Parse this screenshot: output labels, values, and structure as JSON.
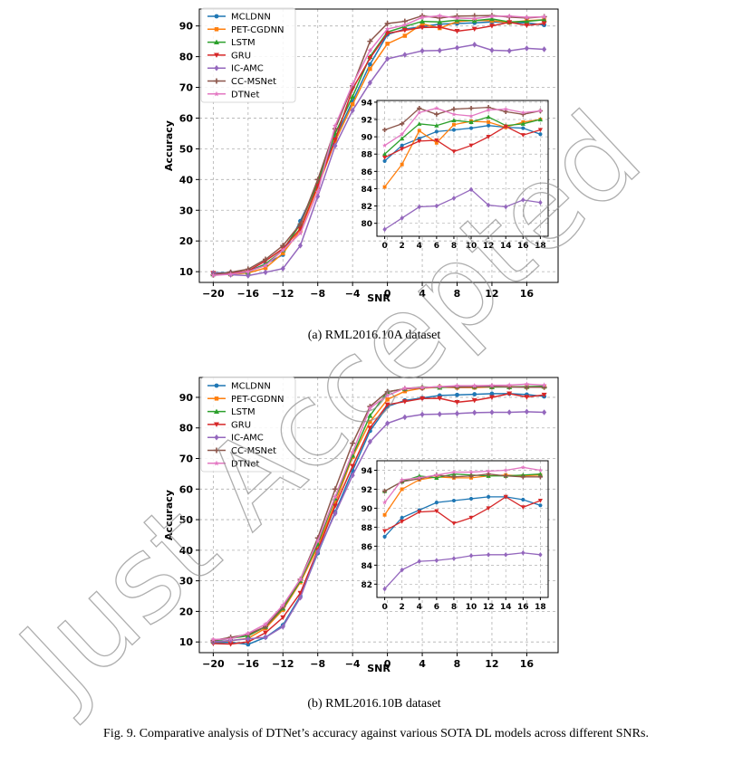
{
  "figure_caption": "Fig. 9.  Comparative analysis of DTNet’s accuracy against various SOTA DL models across different SNRs.",
  "watermark": "Just Accepted",
  "chart_data": [
    {
      "id": "a",
      "type": "line",
      "caption": "(a) RML2016.10A dataset",
      "xlabel": "SNR",
      "ylabel": "Accuracy",
      "xlim": [
        -21.6,
        19.6
      ],
      "ylim": [
        6.5,
        95.5
      ],
      "xticks": [
        -20,
        -16,
        -12,
        -8,
        -4,
        0,
        4,
        8,
        12,
        16
      ],
      "xtick_labels": [
        "−20",
        "−16",
        "−12",
        "−8",
        "−4",
        "0",
        "4",
        "8",
        "12",
        "16"
      ],
      "yticks": [
        10,
        20,
        30,
        40,
        50,
        60,
        70,
        80,
        90
      ],
      "grid": true,
      "legend": "upper left",
      "x": [
        -20,
        -18,
        -16,
        -14,
        -12,
        -10,
        -8,
        -6,
        -4,
        -2,
        0,
        2,
        4,
        6,
        8,
        10,
        12,
        14,
        16,
        18
      ],
      "series": [
        {
          "name": "MCLDNN",
          "color": "#1f77b4",
          "marker": "circle",
          "values": [
            9.6,
            9.7,
            10.1,
            12.5,
            15.5,
            26.5,
            38.5,
            53.5,
            65.5,
            77.5,
            87.2,
            89.0,
            89.8,
            90.6,
            90.8,
            91.0,
            91.3,
            91.1,
            91.0,
            90.3
          ]
        },
        {
          "name": "PET-CGDNN",
          "color": "#ff7f0e",
          "marker": "square",
          "values": [
            9.3,
            9.1,
            9.6,
            11.2,
            16.0,
            23.5,
            37.5,
            52.5,
            64.5,
            76.0,
            84.2,
            86.8,
            90.7,
            89.3,
            91.4,
            91.8,
            91.7,
            91.1,
            91.7,
            92.0
          ]
        },
        {
          "name": "LSTM",
          "color": "#2ca02c",
          "marker": "triangle-up",
          "values": [
            9.2,
            9.3,
            9.8,
            12.5,
            17.0,
            25.5,
            39.0,
            55.0,
            67.0,
            80.0,
            88.0,
            89.8,
            91.5,
            91.3,
            91.9,
            91.7,
            92.3,
            91.3,
            91.5,
            92.0
          ]
        },
        {
          "name": "GRU",
          "color": "#d62728",
          "marker": "triangle-down",
          "values": [
            9.5,
            9.4,
            10.2,
            13.5,
            17.5,
            24.0,
            38.0,
            53.0,
            69.5,
            79.5,
            87.6,
            88.6,
            89.5,
            89.6,
            88.3,
            89.0,
            90.0,
            91.2,
            90.2,
            90.8
          ]
        },
        {
          "name": "IC-AMC",
          "color": "#9467bd",
          "marker": "diamond",
          "values": [
            9.5,
            9.0,
            8.7,
            9.8,
            11.0,
            18.5,
            34.5,
            51.0,
            62.5,
            71.5,
            79.3,
            80.6,
            81.9,
            82.0,
            82.9,
            83.9,
            82.1,
            81.9,
            82.7,
            82.4
          ]
        },
        {
          "name": "CC-MSNet",
          "color": "#8c564b",
          "marker": "plus",
          "values": [
            9.0,
            9.8,
            10.8,
            14.0,
            18.5,
            25.5,
            40.0,
            56.5,
            70.5,
            85.0,
            90.8,
            91.5,
            93.3,
            92.6,
            93.2,
            93.3,
            93.4,
            92.9,
            92.6,
            93.0
          ]
        },
        {
          "name": "DTNet",
          "color": "#e377c2",
          "marker": "star",
          "values": [
            8.8,
            9.2,
            10.0,
            12.0,
            17.0,
            22.5,
            36.0,
            57.5,
            71.0,
            82.0,
            89.0,
            90.3,
            92.8,
            93.3,
            92.6,
            92.4,
            93.1,
            93.2,
            92.8,
            93.0
          ]
        }
      ],
      "inset": {
        "xticks": [
          0,
          2,
          4,
          6,
          8,
          10,
          12,
          14,
          16,
          18
        ],
        "yticks": [
          80,
          82,
          84,
          86,
          88,
          90,
          92,
          94
        ],
        "xlim": [
          -0.9,
          18.9
        ],
        "ylim": [
          78.5,
          94.2
        ],
        "x_from": 0
      }
    },
    {
      "id": "b",
      "type": "line",
      "caption": "(b) RML2016.10B dataset",
      "xlabel": "SNR",
      "ylabel": "Accuracy",
      "xlim": [
        -21.6,
        19.6
      ],
      "ylim": [
        6.5,
        96.5
      ],
      "xticks": [
        -20,
        -16,
        -12,
        -8,
        -4,
        0,
        4,
        8,
        12,
        16
      ],
      "xtick_labels": [
        "−20",
        "−16",
        "−12",
        "−8",
        "−4",
        "0",
        "4",
        "8",
        "12",
        "16"
      ],
      "yticks": [
        10,
        20,
        30,
        40,
        50,
        60,
        70,
        80,
        90
      ],
      "grid": true,
      "legend": "upper left",
      "x": [
        -20,
        -18,
        -16,
        -14,
        -12,
        -10,
        -8,
        -6,
        -4,
        -2,
        0,
        2,
        4,
        6,
        8,
        10,
        12,
        14,
        16,
        18
      ],
      "series": [
        {
          "name": "MCLDNN",
          "color": "#1f77b4",
          "marker": "circle",
          "values": [
            9.8,
            9.9,
            9.2,
            11.5,
            15.5,
            25.0,
            39.0,
            52.5,
            66.0,
            79.0,
            87.0,
            89.0,
            89.8,
            90.6,
            90.8,
            91.0,
            91.2,
            91.2,
            90.9,
            90.3
          ]
        },
        {
          "name": "PET-CGDNN",
          "color": "#ff7f0e",
          "marker": "square",
          "values": [
            10.0,
            10.4,
            11.2,
            14.5,
            20.5,
            29.5,
            41.0,
            55.5,
            70.5,
            82.0,
            89.3,
            92.0,
            93.0,
            93.3,
            93.2,
            93.2,
            93.4,
            93.5,
            93.4,
            93.5
          ]
        },
        {
          "name": "LSTM",
          "color": "#2ca02c",
          "marker": "triangle-up",
          "values": [
            10.3,
            11.2,
            12.0,
            15.0,
            21.0,
            30.0,
            42.0,
            57.0,
            71.0,
            84.0,
            91.8,
            92.8,
            93.4,
            93.2,
            93.6,
            93.5,
            93.4,
            93.4,
            93.5,
            93.6
          ]
        },
        {
          "name": "GRU",
          "color": "#d62728",
          "marker": "triangle-down",
          "values": [
            9.5,
            9.3,
            10.0,
            13.0,
            18.0,
            26.0,
            40.0,
            54.5,
            67.5,
            80.0,
            87.6,
            88.6,
            89.6,
            89.7,
            88.4,
            89.0,
            90.0,
            91.2,
            90.1,
            90.8
          ]
        },
        {
          "name": "IC-AMC",
          "color": "#9467bd",
          "marker": "diamond",
          "values": [
            10.0,
            10.5,
            11.0,
            11.5,
            15.0,
            24.5,
            39.5,
            52.0,
            64.5,
            75.5,
            81.5,
            83.5,
            84.4,
            84.5,
            84.7,
            85.0,
            85.1,
            85.1,
            85.3,
            85.1
          ]
        },
        {
          "name": "CC-MSNet",
          "color": "#8c564b",
          "marker": "plus",
          "values": [
            10.5,
            11.5,
            12.5,
            15.0,
            21.5,
            30.5,
            44.0,
            60.0,
            75.0,
            87.0,
            91.8,
            92.8,
            93.1,
            93.5,
            93.3,
            93.4,
            93.6,
            93.4,
            93.3,
            93.3
          ]
        },
        {
          "name": "DTNet",
          "color": "#e377c2",
          "marker": "star",
          "values": [
            10.8,
            11.0,
            12.8,
            15.8,
            22.0,
            30.5,
            43.0,
            57.5,
            72.0,
            86.5,
            90.6,
            93.0,
            93.2,
            93.5,
            93.8,
            93.8,
            93.9,
            94.0,
            94.3,
            94.0
          ]
        }
      ],
      "inset": {
        "xticks": [
          0,
          2,
          4,
          6,
          8,
          10,
          12,
          14,
          16,
          18
        ],
        "yticks": [
          82,
          84,
          86,
          88,
          90,
          92,
          94
        ],
        "xlim": [
          -0.9,
          18.9
        ],
        "ylim": [
          80.6,
          95.0
        ],
        "x_from": 0
      }
    }
  ]
}
